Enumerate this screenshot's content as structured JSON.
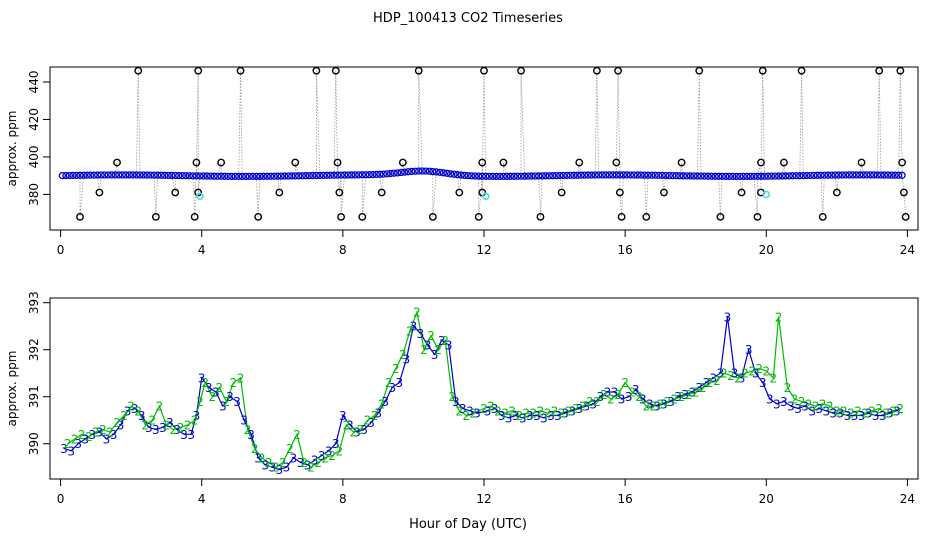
{
  "title": "HDP_100413  CO2 Timeseries",
  "xlabel": "Hour of Day (UTC)",
  "colors": {
    "blue": "#0000cc",
    "green": "#00bb00",
    "cyan": "#44dddd",
    "black": "#000000",
    "grey": "#999999"
  },
  "chart_data": [
    {
      "type": "scatter",
      "ylabel": "approx. ppm",
      "xlim": [
        -0.3,
        24.3
      ],
      "ylim": [
        361,
        448
      ],
      "xticks": [
        0,
        4,
        8,
        12,
        16,
        20,
        24
      ],
      "yticks": [
        380,
        400,
        420,
        440
      ],
      "tick_labels_x": [
        "0",
        "4",
        "8",
        "12",
        "16",
        "20",
        "24"
      ],
      "tick_labels_y": [
        "380",
        "400",
        "420",
        "440"
      ],
      "baseline_ppm": 390,
      "baseline_start_hour": 0.05,
      "baseline_end_hour": 23.85,
      "baseline_step_hour": 0.1,
      "calibration_high": {
        "value": 446,
        "hours": [
          2.2,
          3.9,
          5.1,
          7.25,
          7.8,
          10.15,
          12.0,
          13.05,
          15.2,
          15.8,
          18.1,
          19.9,
          21.0,
          23.2,
          23.8
        ]
      },
      "calibration_mid": {
        "value": 397,
        "hours": [
          1.6,
          3.85,
          4.55,
          6.65,
          7.85,
          9.7,
          11.95,
          12.55,
          14.7,
          15.75,
          17.6,
          19.85,
          20.5,
          22.7,
          23.85
        ]
      },
      "calibration_low": {
        "value": 381,
        "hours": [
          1.1,
          3.25,
          3.9,
          6.2,
          7.9,
          9.1,
          11.3,
          11.95,
          14.2,
          15.85,
          17.1,
          19.3,
          19.85,
          22.0,
          23.9
        ]
      },
      "calibration_lowest": {
        "value": 368,
        "hours": [
          0.55,
          2.7,
          3.8,
          5.6,
          7.95,
          8.55,
          10.55,
          11.85,
          13.6,
          15.9,
          16.6,
          18.7,
          19.75,
          21.6,
          23.95
        ]
      },
      "cyan_points": [
        {
          "x": 3.95,
          "y": 379
        },
        {
          "x": 12.05,
          "y": 379
        },
        {
          "x": 20.0,
          "y": 380
        }
      ]
    },
    {
      "type": "line",
      "ylabel": "approx. ppm",
      "xlim": [
        -0.3,
        24.3
      ],
      "ylim": [
        389.25,
        393.1
      ],
      "xticks": [
        0,
        4,
        8,
        12,
        16,
        20,
        24
      ],
      "yticks": [
        390,
        391,
        392,
        393
      ],
      "tick_labels_x": [
        "0",
        "4",
        "8",
        "12",
        "16",
        "20",
        "24"
      ],
      "tick_labels_y": [
        "390",
        "391",
        "392",
        "393"
      ],
      "series": [
        {
          "name": "3",
          "color": "#0000cc",
          "x": [
            0.1,
            0.3,
            0.5,
            0.7,
            0.9,
            1.1,
            1.3,
            1.5,
            1.7,
            1.9,
            2.1,
            2.3,
            2.5,
            2.7,
            2.9,
            3.1,
            3.3,
            3.5,
            3.7,
            3.85,
            4.0,
            4.2,
            4.4,
            4.6,
            4.8,
            5.0,
            5.2,
            5.4,
            5.6,
            5.8,
            6.0,
            6.2,
            6.4,
            6.6,
            6.8,
            7.0,
            7.2,
            7.4,
            7.6,
            7.8,
            8.0,
            8.2,
            8.4,
            8.6,
            8.8,
            9.0,
            9.2,
            9.4,
            9.6,
            9.8,
            10.0,
            10.2,
            10.4,
            10.6,
            10.8,
            11.0,
            11.2,
            11.4,
            11.6,
            11.8,
            12.1,
            12.3,
            12.5,
            12.7,
            12.9,
            13.1,
            13.3,
            13.5,
            13.7,
            13.9,
            14.1,
            14.3,
            14.5,
            14.7,
            14.9,
            15.1,
            15.3,
            15.5,
            15.7,
            15.9,
            16.1,
            16.3,
            16.5,
            16.7,
            16.9,
            17.1,
            17.3,
            17.5,
            17.7,
            17.9,
            18.1,
            18.3,
            18.5,
            18.7,
            18.9,
            19.1,
            19.3,
            19.5,
            19.7,
            19.9,
            20.1,
            20.3,
            20.5,
            20.7,
            20.9,
            21.1,
            21.3,
            21.5,
            21.7,
            21.9,
            22.1,
            22.3,
            22.5,
            22.7,
            22.9,
            23.1,
            23.3,
            23.5,
            23.7
          ],
          "values": [
            389.9,
            389.85,
            390.0,
            390.1,
            390.2,
            390.25,
            390.1,
            390.2,
            390.4,
            390.7,
            390.75,
            390.6,
            390.35,
            390.3,
            390.35,
            390.45,
            390.3,
            390.2,
            390.2,
            390.6,
            391.4,
            391.2,
            391.1,
            390.8,
            391.0,
            390.9,
            390.5,
            390.2,
            389.7,
            389.55,
            389.5,
            389.45,
            389.5,
            389.7,
            389.6,
            389.55,
            389.65,
            389.75,
            389.85,
            390.0,
            390.6,
            390.4,
            390.25,
            390.3,
            390.45,
            390.65,
            390.9,
            391.2,
            391.3,
            391.8,
            392.5,
            392.35,
            392.1,
            391.9,
            392.2,
            392.1,
            390.9,
            390.75,
            390.7,
            390.65,
            390.7,
            390.75,
            390.6,
            390.55,
            390.6,
            390.55,
            390.6,
            390.6,
            390.55,
            390.6,
            390.6,
            390.65,
            390.7,
            390.75,
            390.8,
            390.85,
            391.0,
            391.1,
            391.1,
            390.95,
            391.0,
            391.15,
            390.95,
            390.85,
            390.8,
            390.85,
            390.9,
            391.0,
            391.05,
            391.1,
            391.2,
            391.3,
            391.4,
            391.5,
            392.7,
            391.5,
            391.4,
            392.0,
            391.5,
            391.3,
            390.95,
            390.85,
            390.9,
            390.8,
            390.75,
            390.8,
            390.7,
            390.75,
            390.7,
            390.65,
            390.65,
            390.6,
            390.6,
            390.6,
            390.65,
            390.6,
            390.6,
            390.65,
            390.7
          ]
        },
        {
          "name": "2",
          "color": "#00bb00",
          "x": [
            0.2,
            0.4,
            0.6,
            0.8,
            1.0,
            1.2,
            1.4,
            1.6,
            1.8,
            2.0,
            2.2,
            2.4,
            2.6,
            2.8,
            3.0,
            3.2,
            3.4,
            3.6,
            3.8,
            3.95,
            4.1,
            4.3,
            4.5,
            4.7,
            4.9,
            5.1,
            5.3,
            5.5,
            5.7,
            5.9,
            6.1,
            6.3,
            6.5,
            6.7,
            6.9,
            7.1,
            7.3,
            7.5,
            7.7,
            7.9,
            8.1,
            8.3,
            8.5,
            8.7,
            8.9,
            9.1,
            9.3,
            9.5,
            9.7,
            9.9,
            10.1,
            10.3,
            10.5,
            10.7,
            10.9,
            11.1,
            11.3,
            11.5,
            11.7,
            12.0,
            12.2,
            12.4,
            12.6,
            12.8,
            13.0,
            13.2,
            13.4,
            13.6,
            13.8,
            14.0,
            14.2,
            14.4,
            14.6,
            14.8,
            15.0,
            15.2,
            15.4,
            15.6,
            15.8,
            16.0,
            16.2,
            16.4,
            16.6,
            16.8,
            17.0,
            17.2,
            17.4,
            17.6,
            17.8,
            18.0,
            18.2,
            18.4,
            18.6,
            18.8,
            19.0,
            19.2,
            19.4,
            19.6,
            19.8,
            20.0,
            20.2,
            20.35,
            20.6,
            20.8,
            21.0,
            21.2,
            21.4,
            21.6,
            21.8,
            22.0,
            22.2,
            22.4,
            22.6,
            22.8,
            23.0,
            23.2,
            23.4,
            23.6,
            23.8
          ],
          "values": [
            390.0,
            390.1,
            390.2,
            390.15,
            390.25,
            390.3,
            390.25,
            390.45,
            390.6,
            390.8,
            390.7,
            390.4,
            390.5,
            390.8,
            390.4,
            390.3,
            390.35,
            390.4,
            390.5,
            390.9,
            391.3,
            391.0,
            391.2,
            390.9,
            391.3,
            391.4,
            390.3,
            389.9,
            389.7,
            389.6,
            389.5,
            389.6,
            389.9,
            390.2,
            389.6,
            389.5,
            389.6,
            389.7,
            389.75,
            389.85,
            390.4,
            390.25,
            390.3,
            390.5,
            390.6,
            390.85,
            391.3,
            391.6,
            391.9,
            392.4,
            392.8,
            392.0,
            392.3,
            392.0,
            392.2,
            391.0,
            390.7,
            390.6,
            390.65,
            390.75,
            390.8,
            390.7,
            390.65,
            390.7,
            390.6,
            390.65,
            390.65,
            390.7,
            390.65,
            390.7,
            390.65,
            390.7,
            390.75,
            390.8,
            390.9,
            390.9,
            391.05,
            390.95,
            391.05,
            391.3,
            391.1,
            391.0,
            390.8,
            390.8,
            390.85,
            390.9,
            390.95,
            391.0,
            391.05,
            391.1,
            391.2,
            391.3,
            391.35,
            391.5,
            391.45,
            391.4,
            391.5,
            391.55,
            391.6,
            391.55,
            391.4,
            392.7,
            391.2,
            390.95,
            390.9,
            390.85,
            390.8,
            390.85,
            390.8,
            390.7,
            390.7,
            390.65,
            390.7,
            390.65,
            390.7,
            390.75,
            390.65,
            390.7,
            390.75
          ]
        }
      ]
    }
  ]
}
